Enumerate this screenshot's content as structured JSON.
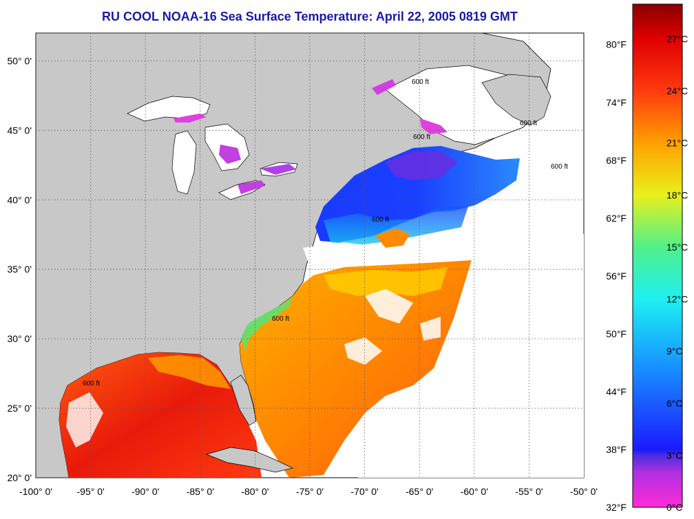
{
  "title": "RU COOL  NOAA-16  Sea Surface Temperature:  April 22, 2005 0819 GMT",
  "map": {
    "lon_range": [
      -100,
      -50
    ],
    "lat_range": [
      20,
      52
    ],
    "lon_ticks": [
      {
        "lon": -100,
        "label": "-100° 0'"
      },
      {
        "lon": -95,
        "label": "-95° 0'"
      },
      {
        "lon": -90,
        "label": "-90° 0'"
      },
      {
        "lon": -85,
        "label": "-85° 0'"
      },
      {
        "lon": -80,
        "label": "-80° 0'"
      },
      {
        "lon": -75,
        "label": "-75° 0'"
      },
      {
        "lon": -70,
        "label": "-70° 0'"
      },
      {
        "lon": -65,
        "label": "-65° 0'"
      },
      {
        "lon": -60,
        "label": "-60° 0'"
      },
      {
        "lon": -55,
        "label": "-55° 0'"
      },
      {
        "lon": -50,
        "label": "-50° 0'"
      }
    ],
    "lat_ticks": [
      {
        "lat": 20,
        "label": "20° 0'"
      },
      {
        "lat": 25,
        "label": "25° 0'"
      },
      {
        "lat": 30,
        "label": "30° 0'"
      },
      {
        "lat": 35,
        "label": "35° 0'"
      },
      {
        "lat": 40,
        "label": "40° 0'"
      },
      {
        "lat": 45,
        "label": "45° 0'"
      },
      {
        "lat": 50,
        "label": "50° 0'"
      }
    ],
    "grid": true,
    "land_color": "#c8c8c8",
    "nodata_color": "#ffffff",
    "contour_label": "600 ft"
  },
  "colorbar": {
    "range_c": [
      0,
      29
    ],
    "celsius_ticks": [
      {
        "c": 0,
        "label": "0°C"
      },
      {
        "c": 3,
        "label": "3°C"
      },
      {
        "c": 6,
        "label": "6°C"
      },
      {
        "c": 9,
        "label": "9°C"
      },
      {
        "c": 12,
        "label": "12°C"
      },
      {
        "c": 15,
        "label": "15°C"
      },
      {
        "c": 18,
        "label": "18°C"
      },
      {
        "c": 21,
        "label": "21°C"
      },
      {
        "c": 24,
        "label": "24°C"
      },
      {
        "c": 27,
        "label": "27°C"
      }
    ],
    "fahrenheit_ticks": [
      {
        "c": 0,
        "label": "32°F"
      },
      {
        "c": 3.33,
        "label": "38°F"
      },
      {
        "c": 6.67,
        "label": "44°F"
      },
      {
        "c": 10,
        "label": "50°F"
      },
      {
        "c": 13.33,
        "label": "56°F"
      },
      {
        "c": 16.67,
        "label": "62°F"
      },
      {
        "c": 20,
        "label": "68°F"
      },
      {
        "c": 23.33,
        "label": "74°F"
      },
      {
        "c": 26.67,
        "label": "80°F"
      }
    ],
    "stops": [
      {
        "c": 0,
        "color": "#ff2bd6"
      },
      {
        "c": 2,
        "color": "#b030e0"
      },
      {
        "c": 3,
        "color": "#4a2ee0"
      },
      {
        "c": 3.3,
        "color": "#1a1aff"
      },
      {
        "c": 6,
        "color": "#1a5cff"
      },
      {
        "c": 9,
        "color": "#18a8ff"
      },
      {
        "c": 12,
        "color": "#1ef0f0"
      },
      {
        "c": 15,
        "color": "#50f08a"
      },
      {
        "c": 18,
        "color": "#e8f01a"
      },
      {
        "c": 21,
        "color": "#ffa000"
      },
      {
        "c": 24,
        "color": "#ff3a10"
      },
      {
        "c": 27,
        "color": "#e00000"
      },
      {
        "c": 29,
        "color": "#8a0000"
      }
    ]
  }
}
